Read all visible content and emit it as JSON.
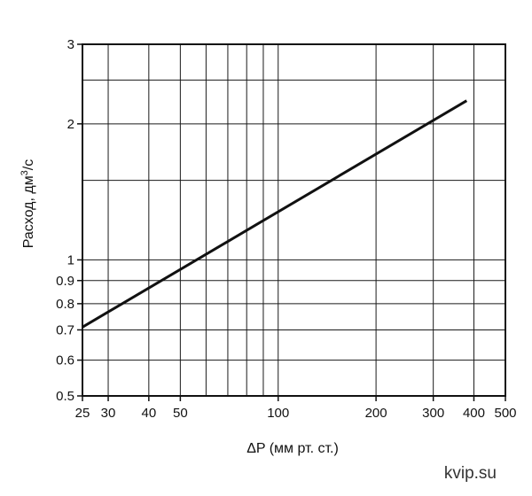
{
  "chart_data": {
    "type": "line",
    "xscale": "log",
    "yscale": "log",
    "xlim": [
      25,
      500
    ],
    "ylim": [
      0.5,
      3
    ],
    "x_ticks": [
      25,
      30,
      40,
      50,
      100,
      200,
      300,
      400,
      500
    ],
    "x_tick_labels": [
      "25",
      "30",
      "40",
      "50",
      "100",
      "200",
      "300",
      "400",
      "500"
    ],
    "x_gridlines": [
      30,
      40,
      50,
      60,
      70,
      80,
      90,
      100,
      200,
      300,
      400
    ],
    "y_ticks": [
      0.5,
      0.6,
      0.7,
      0.8,
      0.9,
      1,
      2,
      3
    ],
    "y_tick_labels": [
      "0.5",
      "0.6",
      "0.7",
      "0.8",
      "0.9",
      "1",
      "2",
      "3"
    ],
    "y_gridlines": [
      0.6,
      0.7,
      0.8,
      0.9,
      1,
      1.5,
      2,
      2.5
    ],
    "grid": true,
    "xlabel": "ΔP (мм рт. ст.)",
    "ylabel_main": "Расход, дм",
    "ylabel_sup": "3",
    "ylabel_tail": "/с",
    "series": [
      {
        "x": [
          25,
          380
        ],
        "y": [
          0.71,
          2.25
        ]
      }
    ]
  },
  "watermark": "kvip.su"
}
